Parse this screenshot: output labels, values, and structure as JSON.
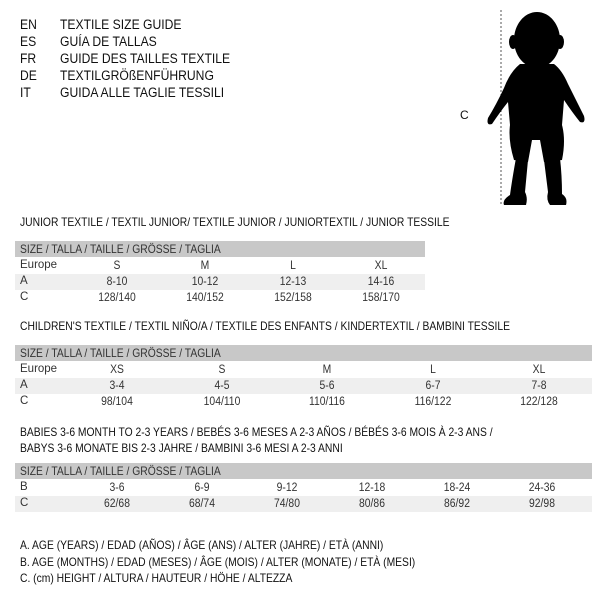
{
  "header": [
    {
      "code": "EN",
      "text": "TEXTILE SIZE GUIDE"
    },
    {
      "code": "ES",
      "text": "GUÍA DE TALLAS"
    },
    {
      "code": "FR",
      "text": "GUIDE DES TAILLES TEXTILE"
    },
    {
      "code": "DE",
      "text": "TEXTILGRÖßENFÜHRUNG"
    },
    {
      "code": "IT",
      "text": "GUIDA ALLE TAGLIE TESSILI"
    }
  ],
  "figure": {
    "measure_label": "C",
    "icon": "baby-silhouette-icon"
  },
  "size_header": "SIZE / TALLA / TAILLE / GRÖSSE / TAGLIA",
  "junior": {
    "title": "JUNIOR TEXTILE / TEXTIL JUNIOR/ TEXTILE JUNIOR / JUNIORTEXTIL / JUNIOR TESSILE",
    "rows": [
      {
        "label": "Europe",
        "values": [
          "S",
          "M",
          "L",
          "XL"
        ]
      },
      {
        "label": "A",
        "values": [
          "8-10",
          "10-12",
          "12-13",
          "14-16"
        ]
      },
      {
        "label": "C",
        "values": [
          "128/140",
          "140/152",
          "152/158",
          "158/170"
        ]
      }
    ]
  },
  "children": {
    "title": "CHILDREN'S TEXTILE / TEXTIL NIÑO/A / TEXTILE DES ENFANTS / KINDERTEXTIL / BAMBINI TESSILE",
    "rows": [
      {
        "label": "Europe",
        "values": [
          "XS",
          "S",
          "M",
          "L",
          "XL"
        ]
      },
      {
        "label": "A",
        "values": [
          "3-4",
          "4-5",
          "5-6",
          "6-7",
          "7-8"
        ]
      },
      {
        "label": "C",
        "values": [
          "98/104",
          "104/110",
          "110/116",
          "116/122",
          "122/128"
        ]
      }
    ]
  },
  "babies": {
    "title1": "BABIES 3-6 MONTH TO 2-3 YEARS / BEBÉS 3-6 MESES A 2-3 AÑOS / BÉBÉS 3-6 MOIS À 2-3 ANS /",
    "title2": "BABYS 3-6 MONATE BIS 2-3 JAHRE / BAMBINI 3-6 MESI A 2-3 ANNI",
    "rows": [
      {
        "label": "B",
        "values": [
          "3-6",
          "6-9",
          "9-12",
          "12-18",
          "18-24",
          "24-36"
        ]
      },
      {
        "label": "C",
        "values": [
          "62/68",
          "68/74",
          "74/80",
          "80/86",
          "86/92",
          "92/98"
        ]
      }
    ]
  },
  "legend": [
    "A. AGE (YEARS) / EDAD (AÑOS) / ÂGE (ANS) / ALTER (JAHRE) / ETÀ (ANNI)",
    "B. AGE (MONTHS) / EDAD (MESES) / ÂGE (MOIS) / ALTER (MONATE) / ETÀ (MESI)",
    "C. (cm) HEIGHT / ALTURA / HAUTEUR / HÖHE / ALTEZZA"
  ]
}
